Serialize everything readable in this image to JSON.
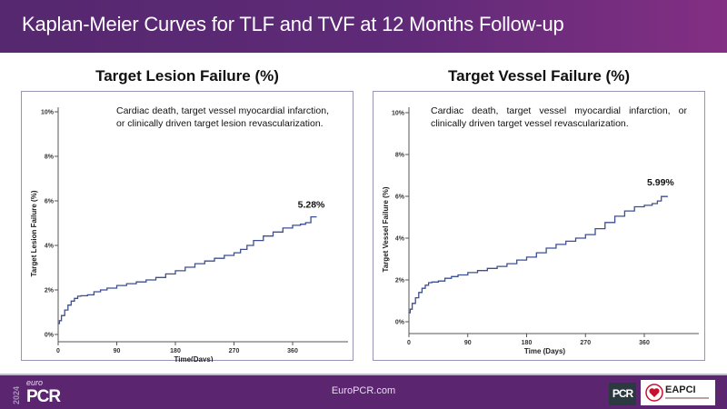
{
  "header": {
    "title": "Kaplan-Meier Curves for TLF and TVF at 12 Months Follow-up"
  },
  "footer": {
    "url_text": "EuroPCR.com",
    "logo_year": "2024",
    "logo_euro": "euro",
    "logo_pcr": "PCR",
    "partner_pcr": "PCR",
    "partner_eapci": "EAPCI"
  },
  "colors": {
    "header_start": "#55286f",
    "header_end": "#832f83",
    "footer": "#5b2570",
    "curve": "#3c4f93"
  },
  "chart_data": [
    {
      "type": "line",
      "subtype": "kaplan-meier-step",
      "title": "Target Lesion Failure (%)",
      "annotation": "Cardiac death, target vessel myocardial infarction, or clinically driven target lesion revascularization.",
      "xlabel": "Time(Days)",
      "ylabel": "Target Lesion Failure (%)",
      "xticks": [
        "0",
        "90",
        "180",
        "270",
        "360"
      ],
      "xtick_values": [
        0,
        90,
        180,
        270,
        360
      ],
      "yticks": [
        "0%",
        "2%",
        "4%",
        "6%",
        "8%",
        "10%"
      ],
      "ytick_values": [
        0,
        2,
        4,
        6,
        8,
        10
      ],
      "xlim": [
        0,
        450
      ],
      "ylim": [
        0,
        10
      ],
      "end_label": "5.28%",
      "series": [
        {
          "name": "TLF",
          "x": [
            0,
            2,
            5,
            10,
            15,
            20,
            25,
            30,
            35,
            45,
            55,
            65,
            75,
            90,
            105,
            120,
            135,
            150,
            165,
            180,
            195,
            210,
            225,
            240,
            255,
            270,
            280,
            290,
            300,
            315,
            330,
            345,
            360,
            372,
            380,
            388,
            397
          ],
          "y": [
            0.49,
            0.62,
            0.85,
            1.1,
            1.32,
            1.5,
            1.62,
            1.72,
            1.74,
            1.78,
            1.92,
            2.0,
            2.08,
            2.2,
            2.28,
            2.36,
            2.45,
            2.56,
            2.72,
            2.86,
            3.02,
            3.18,
            3.3,
            3.42,
            3.55,
            3.67,
            3.82,
            4.0,
            4.22,
            4.42,
            4.6,
            4.78,
            4.9,
            4.95,
            5.02,
            5.28,
            5.28
          ]
        }
      ]
    },
    {
      "type": "line",
      "subtype": "kaplan-meier-step",
      "title": "Target Vessel Failure (%)",
      "annotation": "Cardiac death, target vessel myocardial infarction, or clinically driven target vessel revascularization.",
      "xlabel": "Time (Days)",
      "ylabel": "Target Vessel Failure (%)",
      "xticks": [
        "0",
        "90",
        "180",
        "270",
        "360"
      ],
      "xtick_values": [
        0,
        90,
        180,
        270,
        360
      ],
      "yticks": [
        "0%",
        "2%",
        "4%",
        "6%",
        "8%",
        "10%"
      ],
      "ytick_values": [
        0,
        2,
        4,
        6,
        8,
        10
      ],
      "xlim": [
        0,
        440
      ],
      "ylim": [
        -0.5,
        10.3
      ],
      "end_label": "5.99%",
      "series": [
        {
          "name": "TVF",
          "x": [
            0,
            2,
            5,
            10,
            15,
            20,
            25,
            30,
            35,
            45,
            55,
            65,
            75,
            90,
            105,
            120,
            135,
            150,
            165,
            180,
            195,
            210,
            225,
            240,
            255,
            270,
            285,
            300,
            315,
            330,
            345,
            360,
            372,
            380,
            386,
            396
          ],
          "y": [
            0.43,
            0.6,
            0.88,
            1.15,
            1.4,
            1.6,
            1.75,
            1.87,
            1.9,
            1.95,
            2.08,
            2.16,
            2.24,
            2.35,
            2.45,
            2.55,
            2.65,
            2.78,
            2.95,
            3.09,
            3.3,
            3.52,
            3.7,
            3.85,
            4.0,
            4.17,
            4.45,
            4.75,
            5.05,
            5.3,
            5.5,
            5.57,
            5.65,
            5.78,
            5.99,
            5.99
          ]
        }
      ]
    }
  ]
}
